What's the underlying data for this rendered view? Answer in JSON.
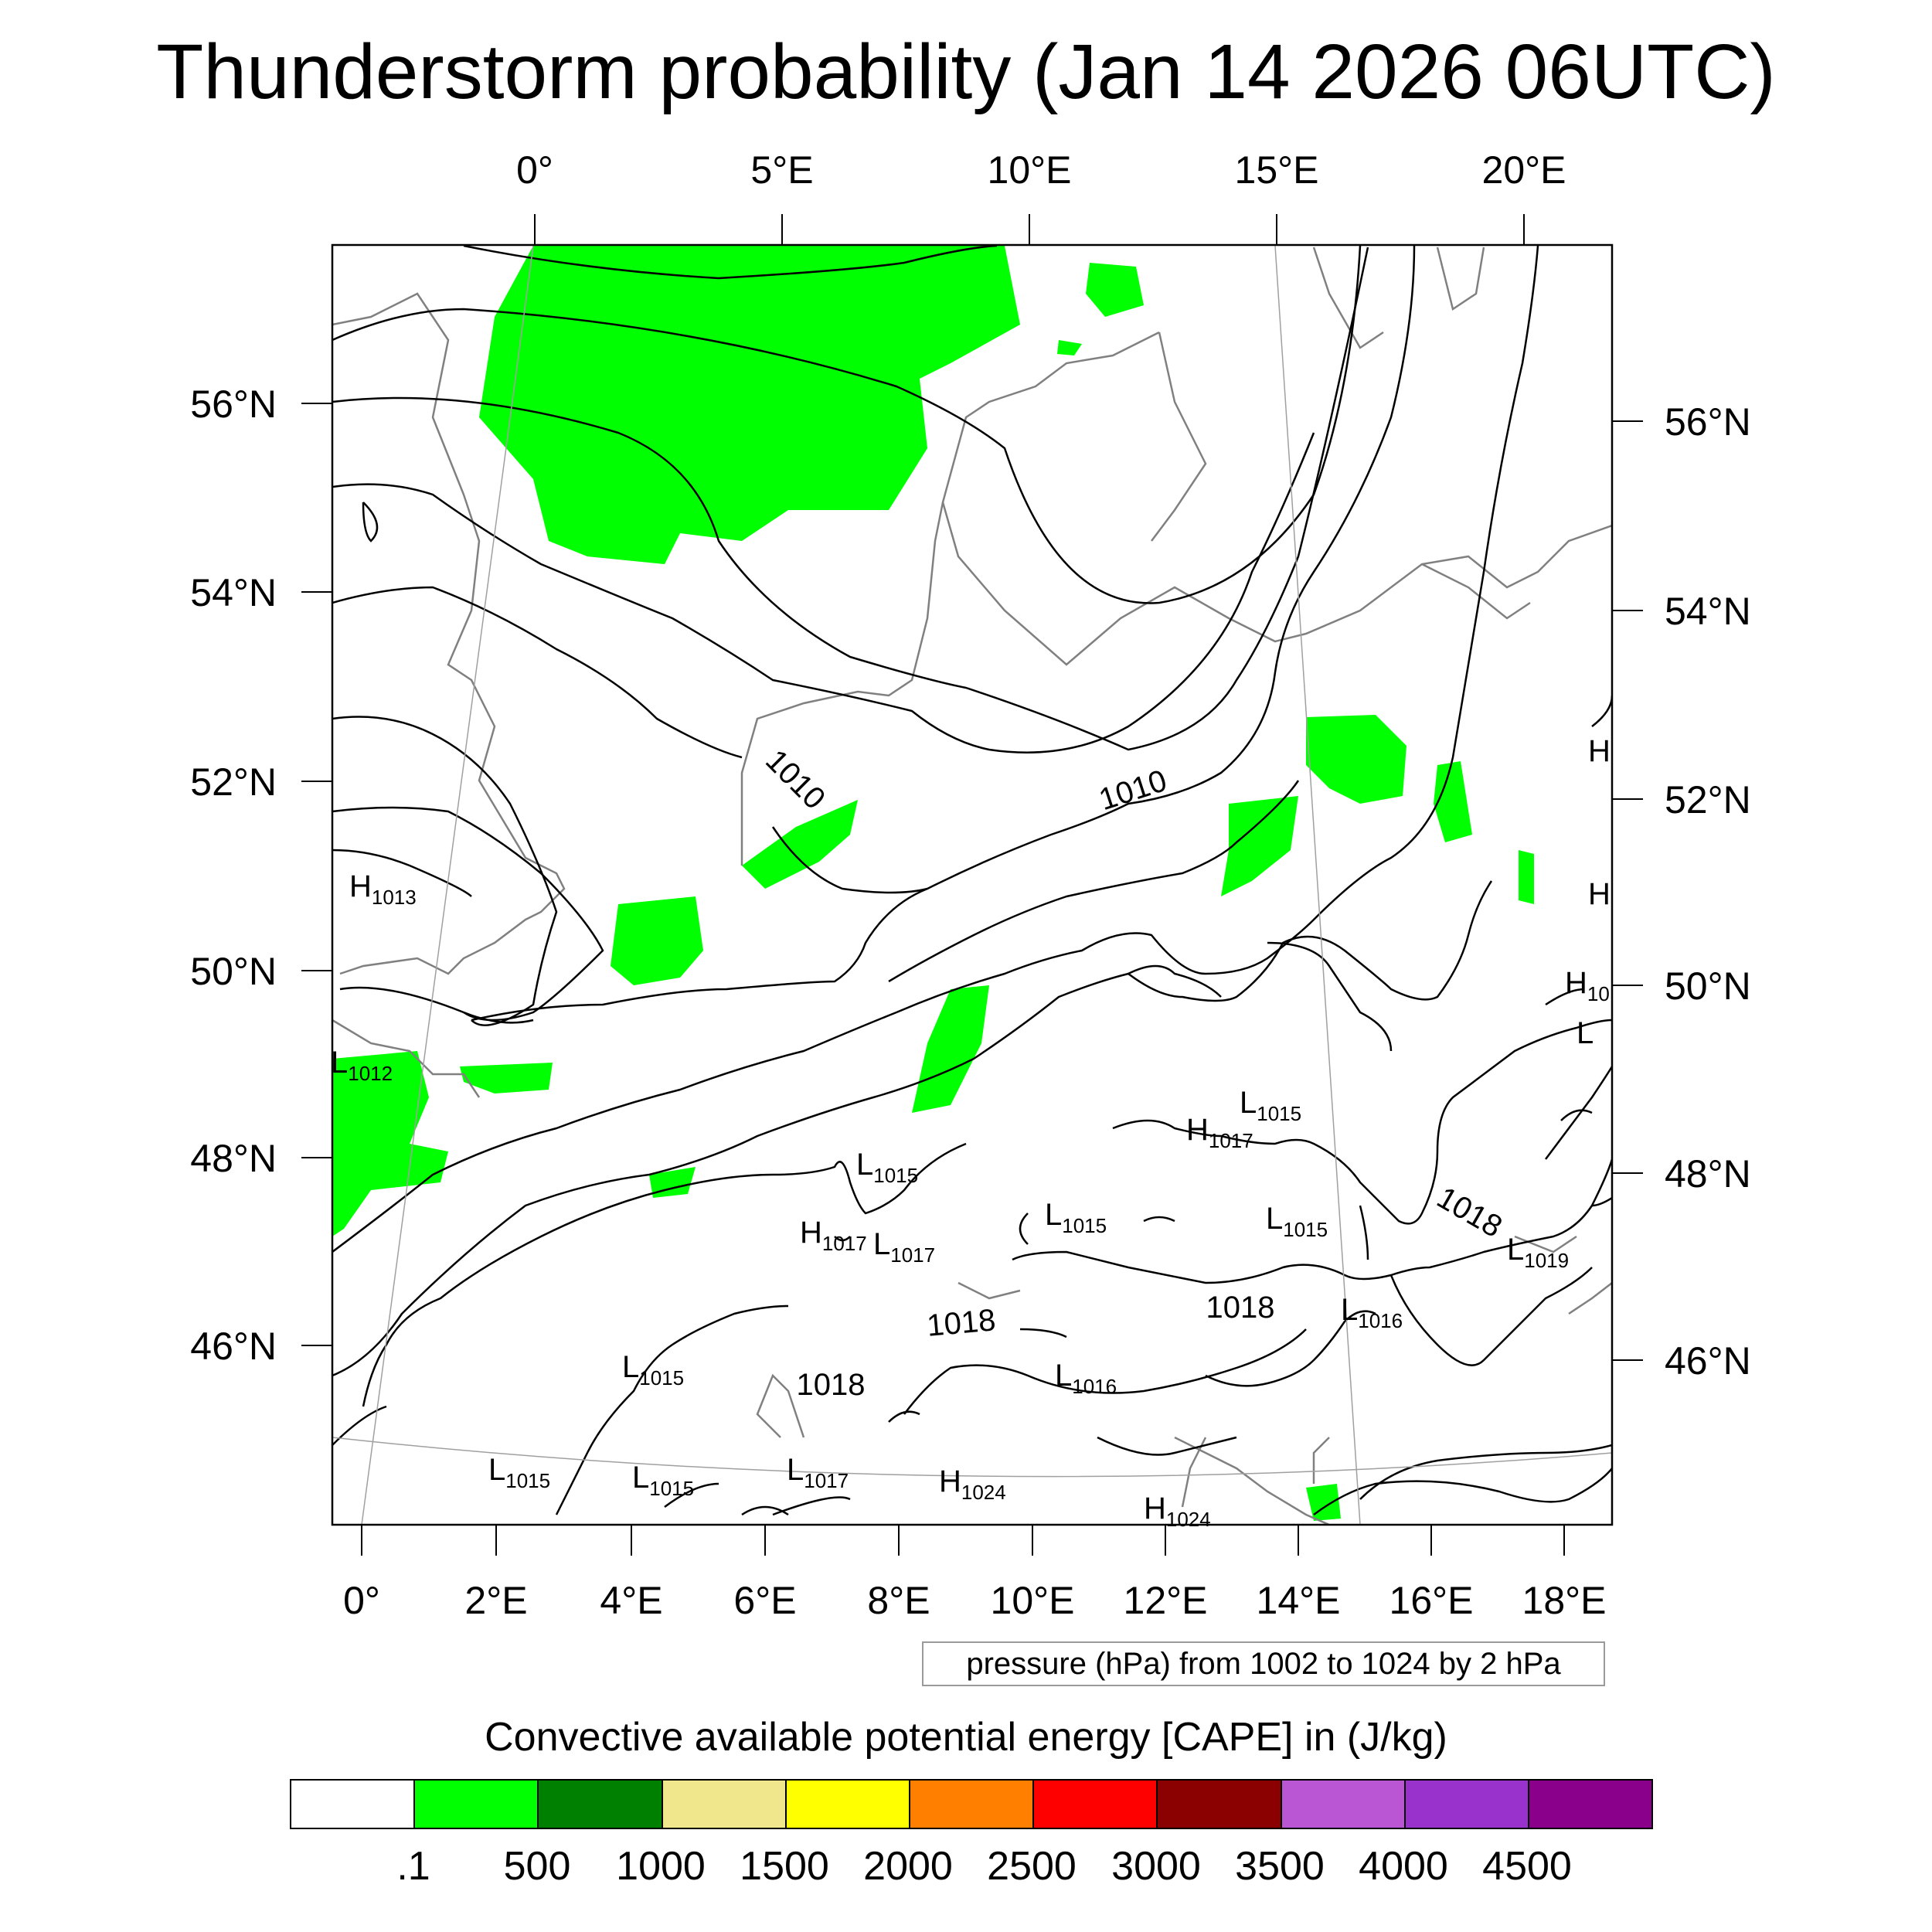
{
  "title": "Thunderstorm probability (Jan 14 2026 06UTC)",
  "map": {
    "top_lon_labels": [
      "0°",
      "5°E",
      "10°E",
      "15°E",
      "20°E"
    ],
    "bottom_lon_labels": [
      "0°",
      "2°E",
      "4°E",
      "6°E",
      "8°E",
      "10°E",
      "12°E",
      "14°E",
      "16°E",
      "18°E"
    ],
    "left_lat_labels": [
      "56°N",
      "54°N",
      "52°N",
      "50°N",
      "48°N",
      "46°N"
    ],
    "right_lat_labels": [
      "56°N",
      "54°N",
      "52°N",
      "50°N",
      "48°N",
      "46°N"
    ],
    "isobar_labels": [
      "1010",
      "1010",
      "1018",
      "1018",
      "1018",
      "1018"
    ],
    "pressure_centers": [
      {
        "type": "H",
        "value": "1013"
      },
      {
        "type": "L",
        "value": "1012"
      },
      {
        "type": "L",
        "value": "1015"
      },
      {
        "type": "H",
        "value": "1017"
      },
      {
        "type": "L",
        "value": "1015"
      },
      {
        "type": "H",
        "value": "1017"
      },
      {
        "type": "L",
        "value": "1017"
      },
      {
        "type": "L",
        "value": "1015"
      },
      {
        "type": "L",
        "value": "1015"
      },
      {
        "type": "L",
        "value": "1019"
      },
      {
        "type": "L",
        "value": "1016"
      },
      {
        "type": "L",
        "value": "1015"
      },
      {
        "type": "L",
        "value": "1016"
      },
      {
        "type": "L",
        "value": "1015"
      },
      {
        "type": "L",
        "value": "1015"
      },
      {
        "type": "L",
        "value": "1017"
      },
      {
        "type": "H",
        "value": "1024"
      },
      {
        "type": "H",
        "value": "1024"
      },
      {
        "type": "H",
        "value": "10"
      },
      {
        "type": "L",
        "value": ""
      },
      {
        "type": "H",
        "value": ""
      },
      {
        "type": "H",
        "value": ""
      }
    ],
    "colors": {
      "land_outline": "#808080",
      "isobar": "#000000",
      "cape_fill": "#00ff00"
    }
  },
  "pressure_note": "pressure (hPa) from 1002 to 1024 by 2 hPa",
  "colorbar": {
    "title": "Convective available potential energy [CAPE] in (J/kg)",
    "colors": [
      "#ffffff",
      "#00ff00",
      "#008000",
      "#f0e68c",
      "#ffff00",
      "#ff8000",
      "#ff0000",
      "#8b0000",
      "#ba55d3",
      "#9932cc",
      "#8b008b"
    ],
    "labels": [
      ".1",
      "500",
      "1000",
      "1500",
      "2000",
      "2500",
      "3000",
      "3500",
      "4000",
      "4500"
    ]
  }
}
